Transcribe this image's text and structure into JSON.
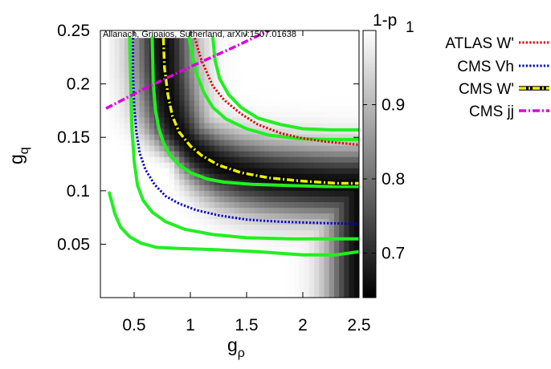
{
  "chart_data": {
    "type": "heatmap",
    "annotation": "Allanach, Gripaios, Sutherland, arXiv:1507.01638",
    "xlabel": {
      "main": "g",
      "sub": "ρ"
    },
    "ylabel": {
      "main": "g",
      "sub": "q"
    },
    "xlim": [
      0.2,
      2.5
    ],
    "ylim": [
      0.0,
      0.25
    ],
    "xticks": [
      "0.5",
      "1",
      "1.5",
      "2",
      "2.5"
    ],
    "xtick_values": [
      0.5,
      1.0,
      1.5,
      2.0,
      2.5
    ],
    "yticks": [
      "0.05",
      "0.1",
      "0.15",
      "0.2",
      "0.25"
    ],
    "ytick_values": [
      0.05,
      0.1,
      0.15,
      0.2,
      0.25
    ],
    "colorbar": {
      "label": "1-p",
      "range": [
        0.64,
        1.0
      ],
      "ticks": [
        "0.7",
        "0.8",
        "0.9",
        "1"
      ],
      "tick_values": [
        0.7,
        0.8,
        0.9,
        1.0
      ],
      "colors": [
        "#000000",
        "#ffffff"
      ]
    },
    "heatmap_extent": {
      "x": [
        0.28,
        2.5
      ],
      "y": [
        0.0,
        0.243
      ]
    },
    "series": [
      {
        "name": "ATLAS W'",
        "color": "#dd0000",
        "style": "dotted",
        "x": [
          1.04,
          1.07,
          1.1,
          1.15,
          1.2,
          1.3,
          1.45,
          1.6,
          1.8,
          2.0,
          2.2,
          2.5
        ],
        "y": [
          0.243,
          0.232,
          0.222,
          0.21,
          0.198,
          0.185,
          0.172,
          0.162,
          0.154,
          0.149,
          0.146,
          0.143
        ]
      },
      {
        "name": "CMS Vh",
        "color": "#0000cc",
        "style": "dotted",
        "x": [
          0.49,
          0.49,
          0.5,
          0.52,
          0.55,
          0.6,
          0.68,
          0.78,
          0.9,
          1.05,
          1.25,
          1.5,
          1.8,
          2.1,
          2.5
        ],
        "y": [
          0.243,
          0.21,
          0.18,
          0.155,
          0.135,
          0.12,
          0.106,
          0.095,
          0.088,
          0.082,
          0.077,
          0.073,
          0.071,
          0.07,
          0.069
        ]
      },
      {
        "name": "CMS W'",
        "color": "#eeee00",
        "style": "dashdot",
        "x": [
          0.76,
          0.77,
          0.8,
          0.84,
          0.9,
          1.0,
          1.1,
          1.25,
          1.45,
          1.7,
          2.0,
          2.3,
          2.5
        ],
        "y": [
          0.243,
          0.215,
          0.19,
          0.17,
          0.155,
          0.142,
          0.133,
          0.124,
          0.117,
          0.112,
          0.109,
          0.107,
          0.107
        ]
      },
      {
        "name": "CMS jj",
        "color": "#dd00dd",
        "style": "dashdot",
        "x": [
          0.25,
          0.6,
          1.0,
          1.4,
          1.8
        ],
        "y": [
          0.177,
          0.196,
          0.216,
          0.235,
          0.255
        ]
      }
    ],
    "contours": [
      {
        "x": [
          0.28,
          0.33,
          0.38,
          0.46,
          0.56,
          0.7,
          0.9,
          1.2,
          1.6,
          2.0,
          2.3,
          2.5
        ],
        "y": [
          0.098,
          0.078,
          0.066,
          0.057,
          0.051,
          0.047,
          0.046,
          0.045,
          0.043,
          0.04,
          0.04,
          0.043
        ]
      },
      {
        "x": [
          0.46,
          0.47,
          0.48,
          0.5,
          0.53,
          0.58,
          0.66,
          0.78,
          0.95,
          1.2,
          1.5,
          1.9,
          2.2,
          2.5
        ],
        "y": [
          0.243,
          0.2,
          0.16,
          0.128,
          0.105,
          0.091,
          0.08,
          0.071,
          0.064,
          0.059,
          0.056,
          0.055,
          0.055,
          0.055
        ]
      },
      {
        "x": [
          0.66,
          0.665,
          0.67,
          0.69,
          0.72,
          0.76,
          0.82,
          0.9,
          1.0,
          1.15,
          1.3,
          1.55,
          1.85,
          2.2,
          2.5
        ],
        "y": [
          0.243,
          0.225,
          0.2,
          0.175,
          0.158,
          0.145,
          0.133,
          0.124,
          0.117,
          0.111,
          0.108,
          0.106,
          0.105,
          0.104,
          0.104
        ]
      },
      {
        "x": [
          0.99,
          1.02,
          1.06,
          1.12,
          1.2,
          1.32,
          1.5,
          1.7,
          1.95,
          2.2,
          2.5
        ],
        "y": [
          0.243,
          0.225,
          0.208,
          0.192,
          0.178,
          0.167,
          0.158,
          0.152,
          0.149,
          0.148,
          0.148
        ]
      },
      {
        "x": [
          1.2,
          1.22,
          1.26,
          1.34,
          1.45,
          1.6,
          1.8,
          2.0,
          2.25,
          2.5
        ],
        "y": [
          0.243,
          0.222,
          0.205,
          0.19,
          0.178,
          0.168,
          0.162,
          0.158,
          0.157,
          0.157
        ]
      }
    ]
  }
}
